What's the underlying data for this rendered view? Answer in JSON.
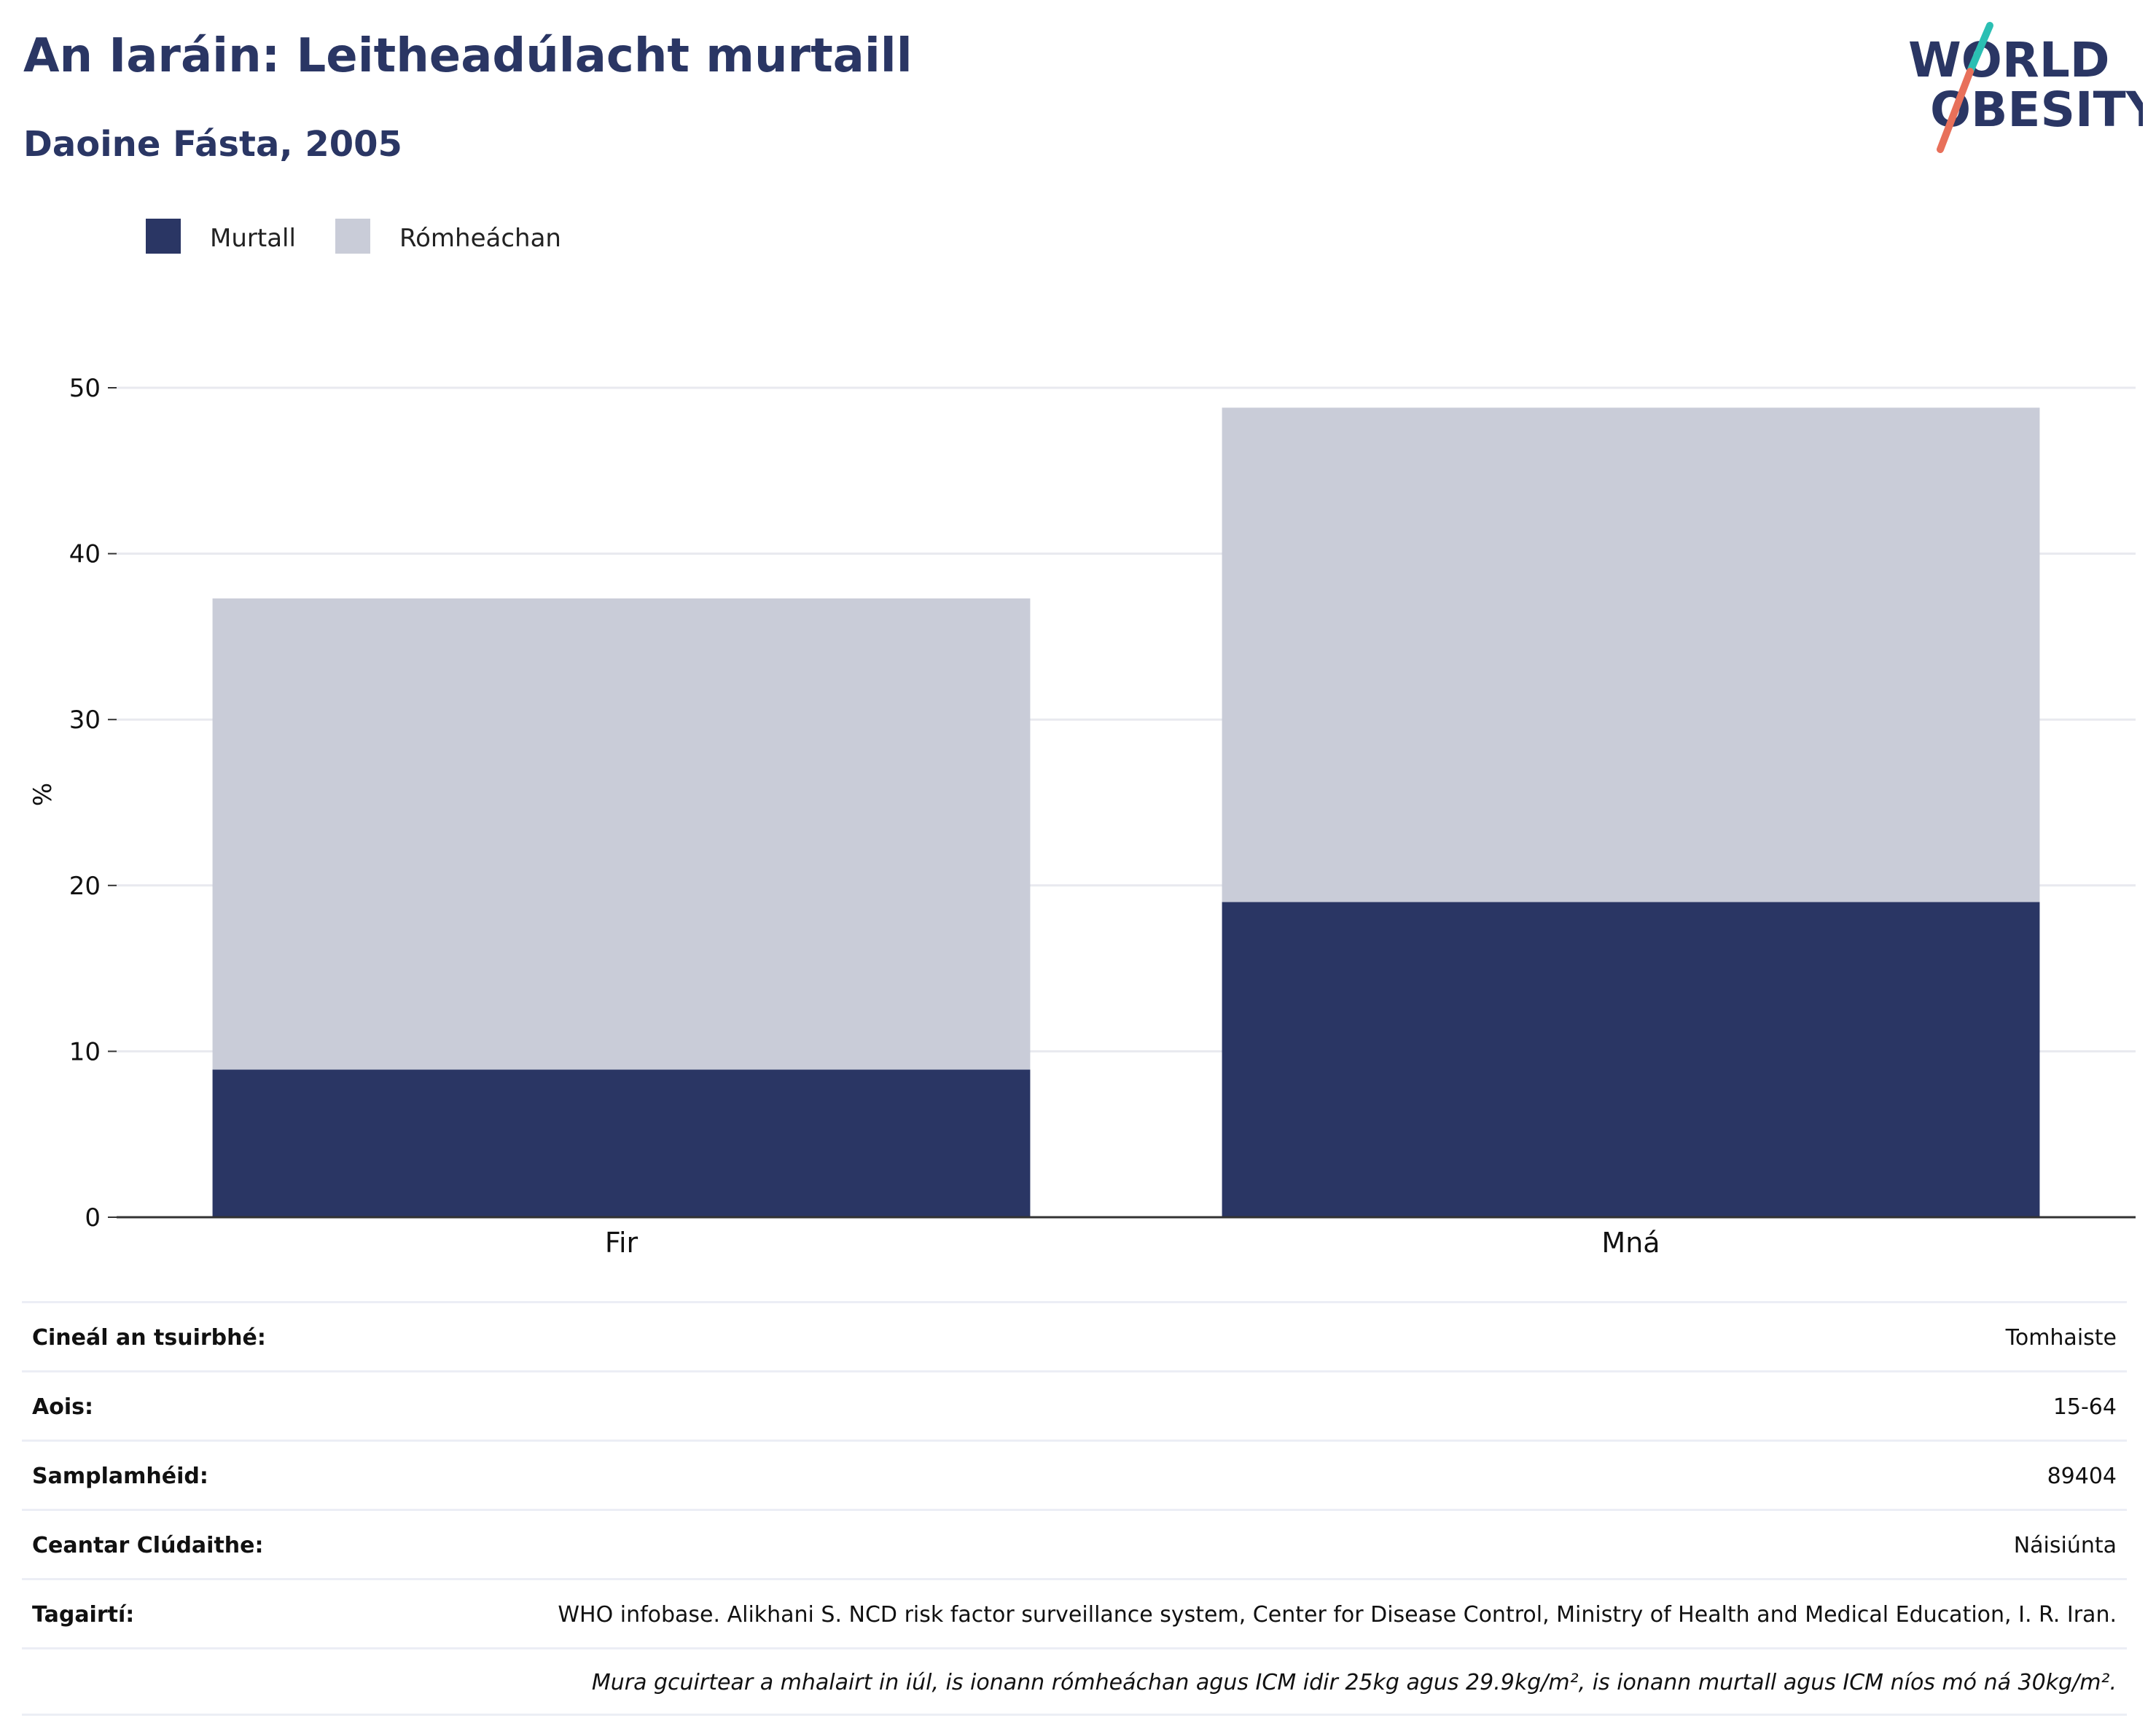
{
  "header": {
    "title": "An Iaráin: Leitheadúlacht murtaill",
    "subtitle": "Daoine Fásta, 2005"
  },
  "logo": {
    "line1": "WORLD",
    "line2": "OBESITY",
    "text_color": "#2a3664",
    "slash_colors": [
      "#2bbfb3",
      "#e8705a"
    ]
  },
  "colors": {
    "obesity": "#2a3664",
    "overweight": "#c9ccd8",
    "grid": "#e8e9ef",
    "axis": "#333333"
  },
  "chart_data": {
    "type": "bar",
    "stacked": true,
    "categories": [
      "Fir",
      "Mná"
    ],
    "series": [
      {
        "name": "Murtall",
        "values": [
          8.9,
          19.0
        ],
        "color": "#2a3664"
      },
      {
        "name": "Rómheáchan",
        "values": [
          28.4,
          29.8
        ],
        "color": "#c9ccd8"
      }
    ],
    "ylabel": "%",
    "xlabel": "",
    "ylim": [
      0,
      50
    ],
    "yticks": [
      0,
      10,
      20,
      30,
      40,
      50
    ],
    "grid": true,
    "legend_position": "top-left"
  },
  "info": {
    "rows": [
      {
        "label": "Cineál an tsuirbhé:",
        "value": "Tomhaiste"
      },
      {
        "label": "Aois:",
        "value": "15-64"
      },
      {
        "label": "Samplamhéid:",
        "value": "89404"
      },
      {
        "label": "Ceantar Clúdaithe:",
        "value": "Náisiúnta"
      },
      {
        "label": "Tagairtí:",
        "value": "WHO infobase. Alikhani S. NCD risk factor surveillance system, Center for Disease Control, Ministry of Health and Medical Education, I. R. Iran."
      }
    ],
    "note": "Mura gcuirtear a mhalairt in iúl, is ionann rómheáchan agus ICM idir 25kg agus 29.9kg/m², is ionann murtall agus ICM níos mó ná 30kg/m²."
  }
}
